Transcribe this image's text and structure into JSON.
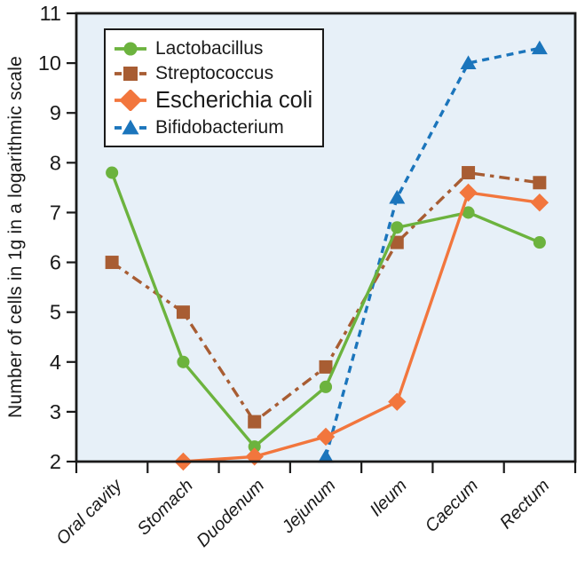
{
  "chart_data": {
    "type": "line",
    "title": "",
    "xlabel": "",
    "ylabel": "Number of cells in 1g in a logarithmic scale",
    "ylim": [
      2,
      11
    ],
    "yticks": [
      2,
      3,
      4,
      5,
      6,
      7,
      8,
      9,
      10,
      11
    ],
    "grid": false,
    "legend_position": "top-left",
    "plot_background": "#E7F0F8",
    "axis_color": "#1A1A1A",
    "categories": [
      "Oral cavity",
      "Stomach",
      "Duodenum",
      "Jejunum",
      "Ileum",
      "Caecum",
      "Rectum"
    ],
    "series": [
      {
        "name": "Lactobacillus",
        "color": "#6CB33E",
        "marker": "circle",
        "line_style": "solid",
        "values": [
          7.8,
          4.0,
          2.3,
          3.5,
          6.7,
          7.0,
          6.4
        ]
      },
      {
        "name": "Streptococcus",
        "color": "#A85D33",
        "marker": "square",
        "line_style": "dash-dot",
        "values": [
          6.0,
          5.0,
          2.8,
          3.9,
          6.4,
          7.8,
          7.6
        ]
      },
      {
        "name": "Escherichia coli",
        "color": "#F2763D",
        "marker": "diamond",
        "line_style": "solid",
        "values": [
          null,
          2.0,
          2.1,
          2.5,
          3.2,
          7.4,
          7.2
        ]
      },
      {
        "name": "Bifidobacterium",
        "color": "#1B75BC",
        "marker": "triangle",
        "line_style": "dashed",
        "values": [
          null,
          null,
          null,
          2.1,
          7.3,
          10.0,
          10.3
        ]
      }
    ]
  }
}
